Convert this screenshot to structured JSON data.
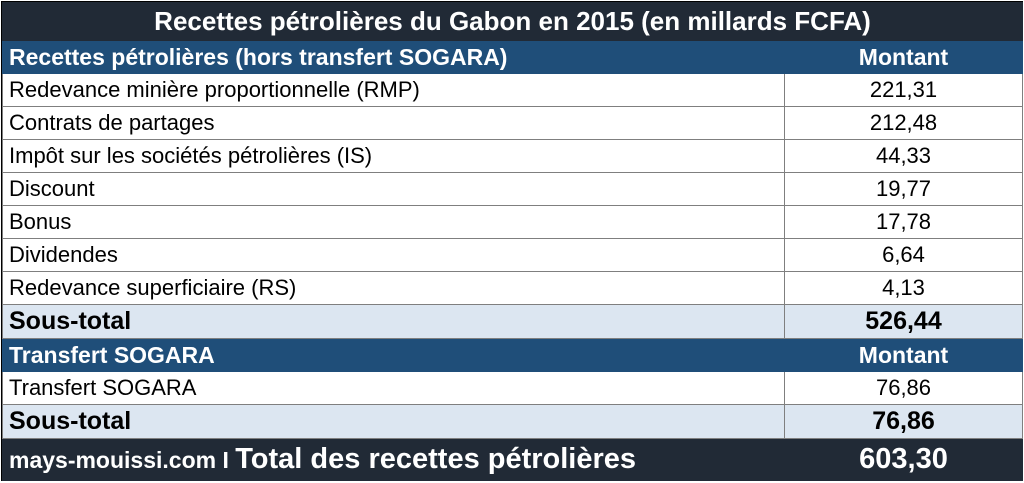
{
  "title": "Recettes pétrolières du Gabon en 2015 (en millards FCFA)",
  "section1": {
    "header": "Recettes pétrolières (hors transfert SOGARA)",
    "amount_header": "Montant",
    "rows": [
      {
        "label": "Redevance minière proportionnelle (RMP)",
        "value": "221,31"
      },
      {
        "label": "Contrats de partages",
        "value": "212,48"
      },
      {
        "label": "Impôt sur les sociétés pétrolières (IS)",
        "value": "44,33"
      },
      {
        "label": "Discount",
        "value": "19,77"
      },
      {
        "label": "Bonus",
        "value": "17,78"
      },
      {
        "label": "Dividendes",
        "value": "6,64"
      },
      {
        "label": "Redevance superficiaire (RS)",
        "value": "4,13"
      }
    ],
    "subtotal_label": "Sous-total",
    "subtotal_value": "526,44"
  },
  "section2": {
    "header": "Transfert SOGARA",
    "amount_header": "Montant",
    "rows": [
      {
        "label": "Transfert SOGARA",
        "value": "76,86"
      }
    ],
    "subtotal_label": "Sous-total",
    "subtotal_value": "76,86"
  },
  "footer": {
    "site": "mays-mouissi.com I ",
    "total_label": "Total des recettes pétrolières",
    "total_value": "603,30"
  }
}
